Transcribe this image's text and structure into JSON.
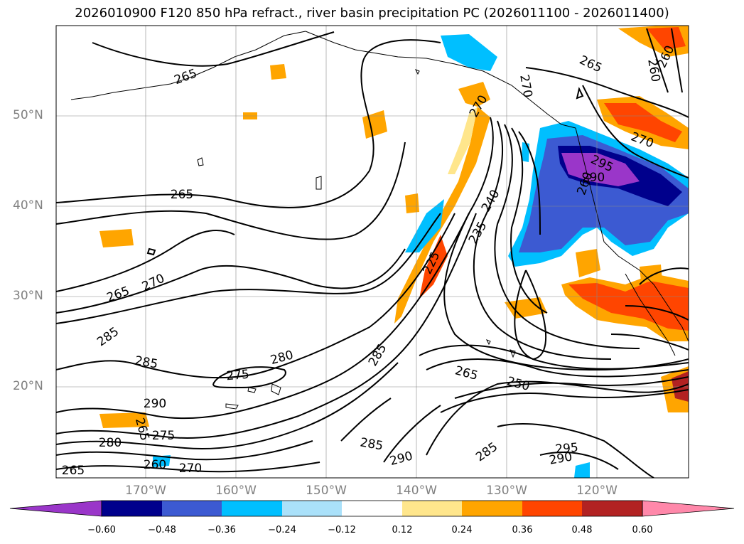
{
  "title": "2026010900 F120 850 hPa refract., river basin precipitation PC (2026011100 - 2026011400)",
  "lat_labels": [
    "50°N",
    "40°N",
    "30°N",
    "20°N"
  ],
  "lon_labels": [
    "170°W",
    "160°W",
    "150°W",
    "140°W",
    "130°W",
    "120°W"
  ],
  "colorbar": {
    "ticks": [
      "−0.60",
      "−0.48",
      "−0.36",
      "−0.24",
      "−0.12",
      "0.12",
      "0.24",
      "0.36",
      "0.48",
      "0.60"
    ],
    "colors": [
      "#9a36c9",
      "#00008c",
      "#3c5ad2",
      "#00bfff",
      "#aae1fa",
      "#ffffff",
      "#ffe68c",
      "#ffa500",
      "#ff4500",
      "#b22222",
      "#ff88aa"
    ]
  },
  "contour_labels": [
    "265",
    "265",
    "265",
    "265",
    "260",
    "260",
    "270",
    "270",
    "270",
    "240",
    "235",
    "225",
    "285",
    "285",
    "285",
    "285",
    "280",
    "275",
    "290",
    "290",
    "280",
    "275",
    "260",
    "270",
    "265",
    "265",
    "250",
    "285",
    "290",
    "295",
    "295",
    "290",
    "270",
    "260",
    "265"
  ]
}
